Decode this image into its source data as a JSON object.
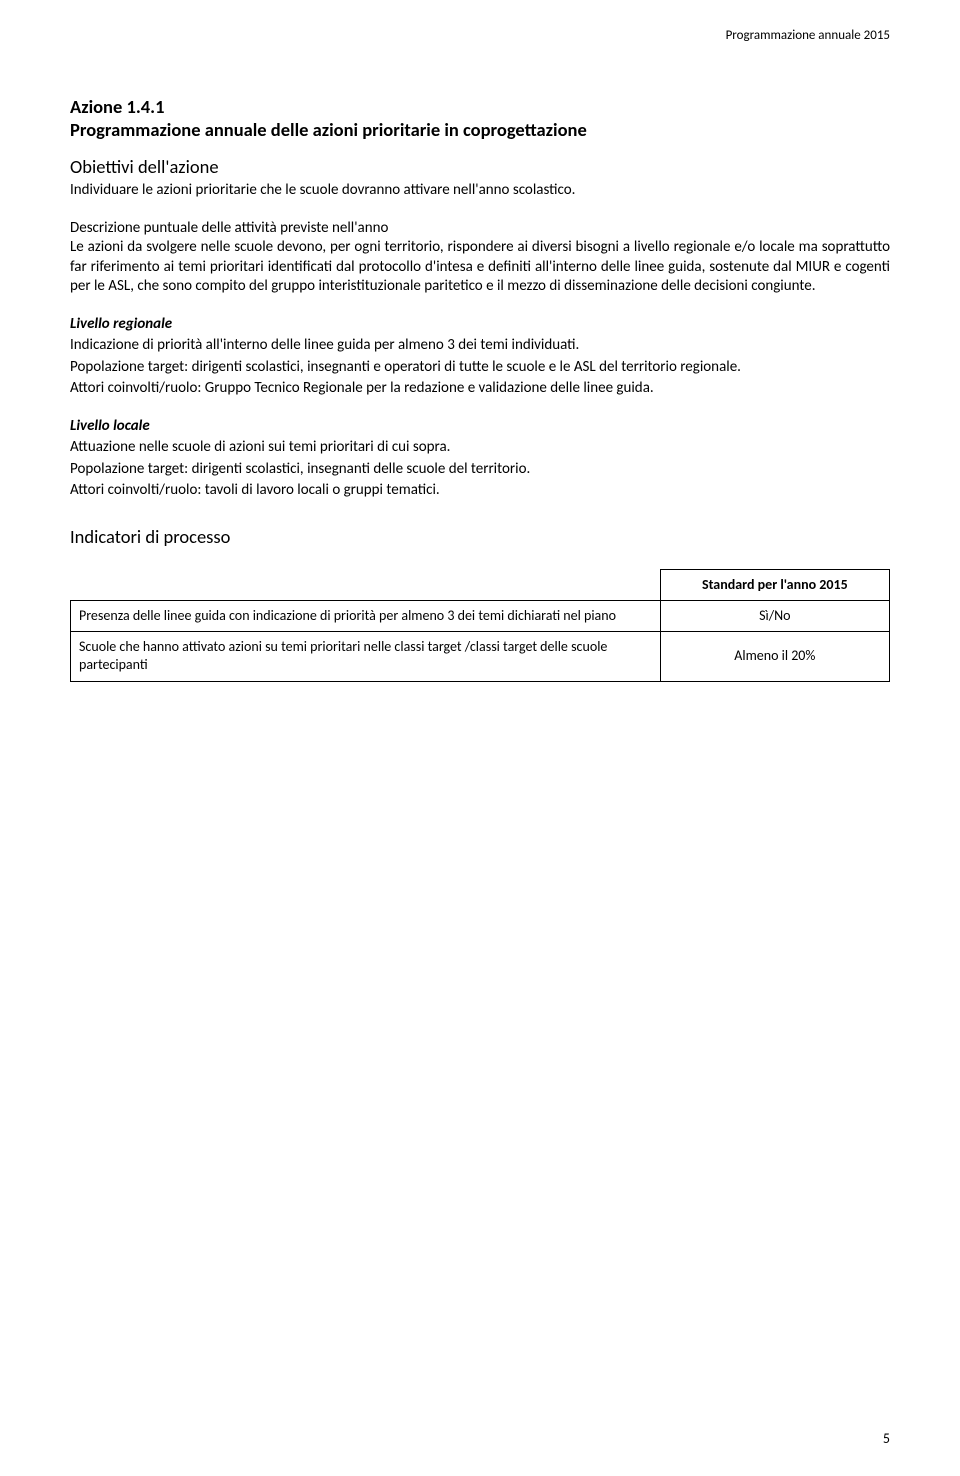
{
  "header": {
    "right_label": "Programmazione annuale 2015"
  },
  "action": {
    "code": "Azione 1.4.1",
    "title": "Programmazione annuale delle azioni prioritarie in coprogettazione"
  },
  "obiettivi": {
    "label": "Obiettivi dell'azione",
    "text": "Individuare le azioni prioritarie che le scuole dovranno attivare nell'anno scolastico."
  },
  "descrizione": {
    "title": "Descrizione puntuale delle attività previste nell'anno",
    "body": "Le azioni da svolgere nelle scuole devono, per ogni territorio, rispondere ai diversi bisogni a livello regionale e/o locale ma soprattutto far riferimento ai temi prioritari identificati dal protocollo d'intesa e definiti all'interno delle linee guida, sostenute dal MIUR e cogenti per le ASL, che sono compito del gruppo interistituzionale paritetico e il mezzo di disseminazione delle decisioni congiunte."
  },
  "regionale": {
    "label": "Livello regionale",
    "line1": "Indicazione di priorità all'interno delle linee guida per almeno 3 dei temi individuati.",
    "line2": "Popolazione target: dirigenti scolastici, insegnanti e operatori di tutte le scuole e le ASL del territorio regionale.",
    "line3": "Attori coinvolti/ruolo: Gruppo Tecnico Regionale per la redazione e validazione delle linee guida."
  },
  "locale": {
    "label": "Livello locale",
    "line1": "Attuazione nelle scuole di azioni sui temi prioritari di cui sopra.",
    "line2": "Popolazione target: dirigenti scolastici, insegnanti delle scuole del territorio.",
    "line3": "Attori coinvolti/ruolo: tavoli di lavoro locali o gruppi tematici."
  },
  "indicatori": {
    "title": "Indicatori di processo"
  },
  "table": {
    "header_standard": "Standard per l'anno 2015",
    "rows": [
      {
        "desc": "Presenza delle linee guida con indicazione di priorità per almeno 3 dei temi dichiarati nel piano",
        "value": "Sì/No"
      },
      {
        "desc": "Scuole che hanno attivato azioni su temi prioritari nelle classi target /classi target delle scuole partecipanti",
        "value": "Almeno il 20%"
      }
    ]
  },
  "page_number": "5"
}
